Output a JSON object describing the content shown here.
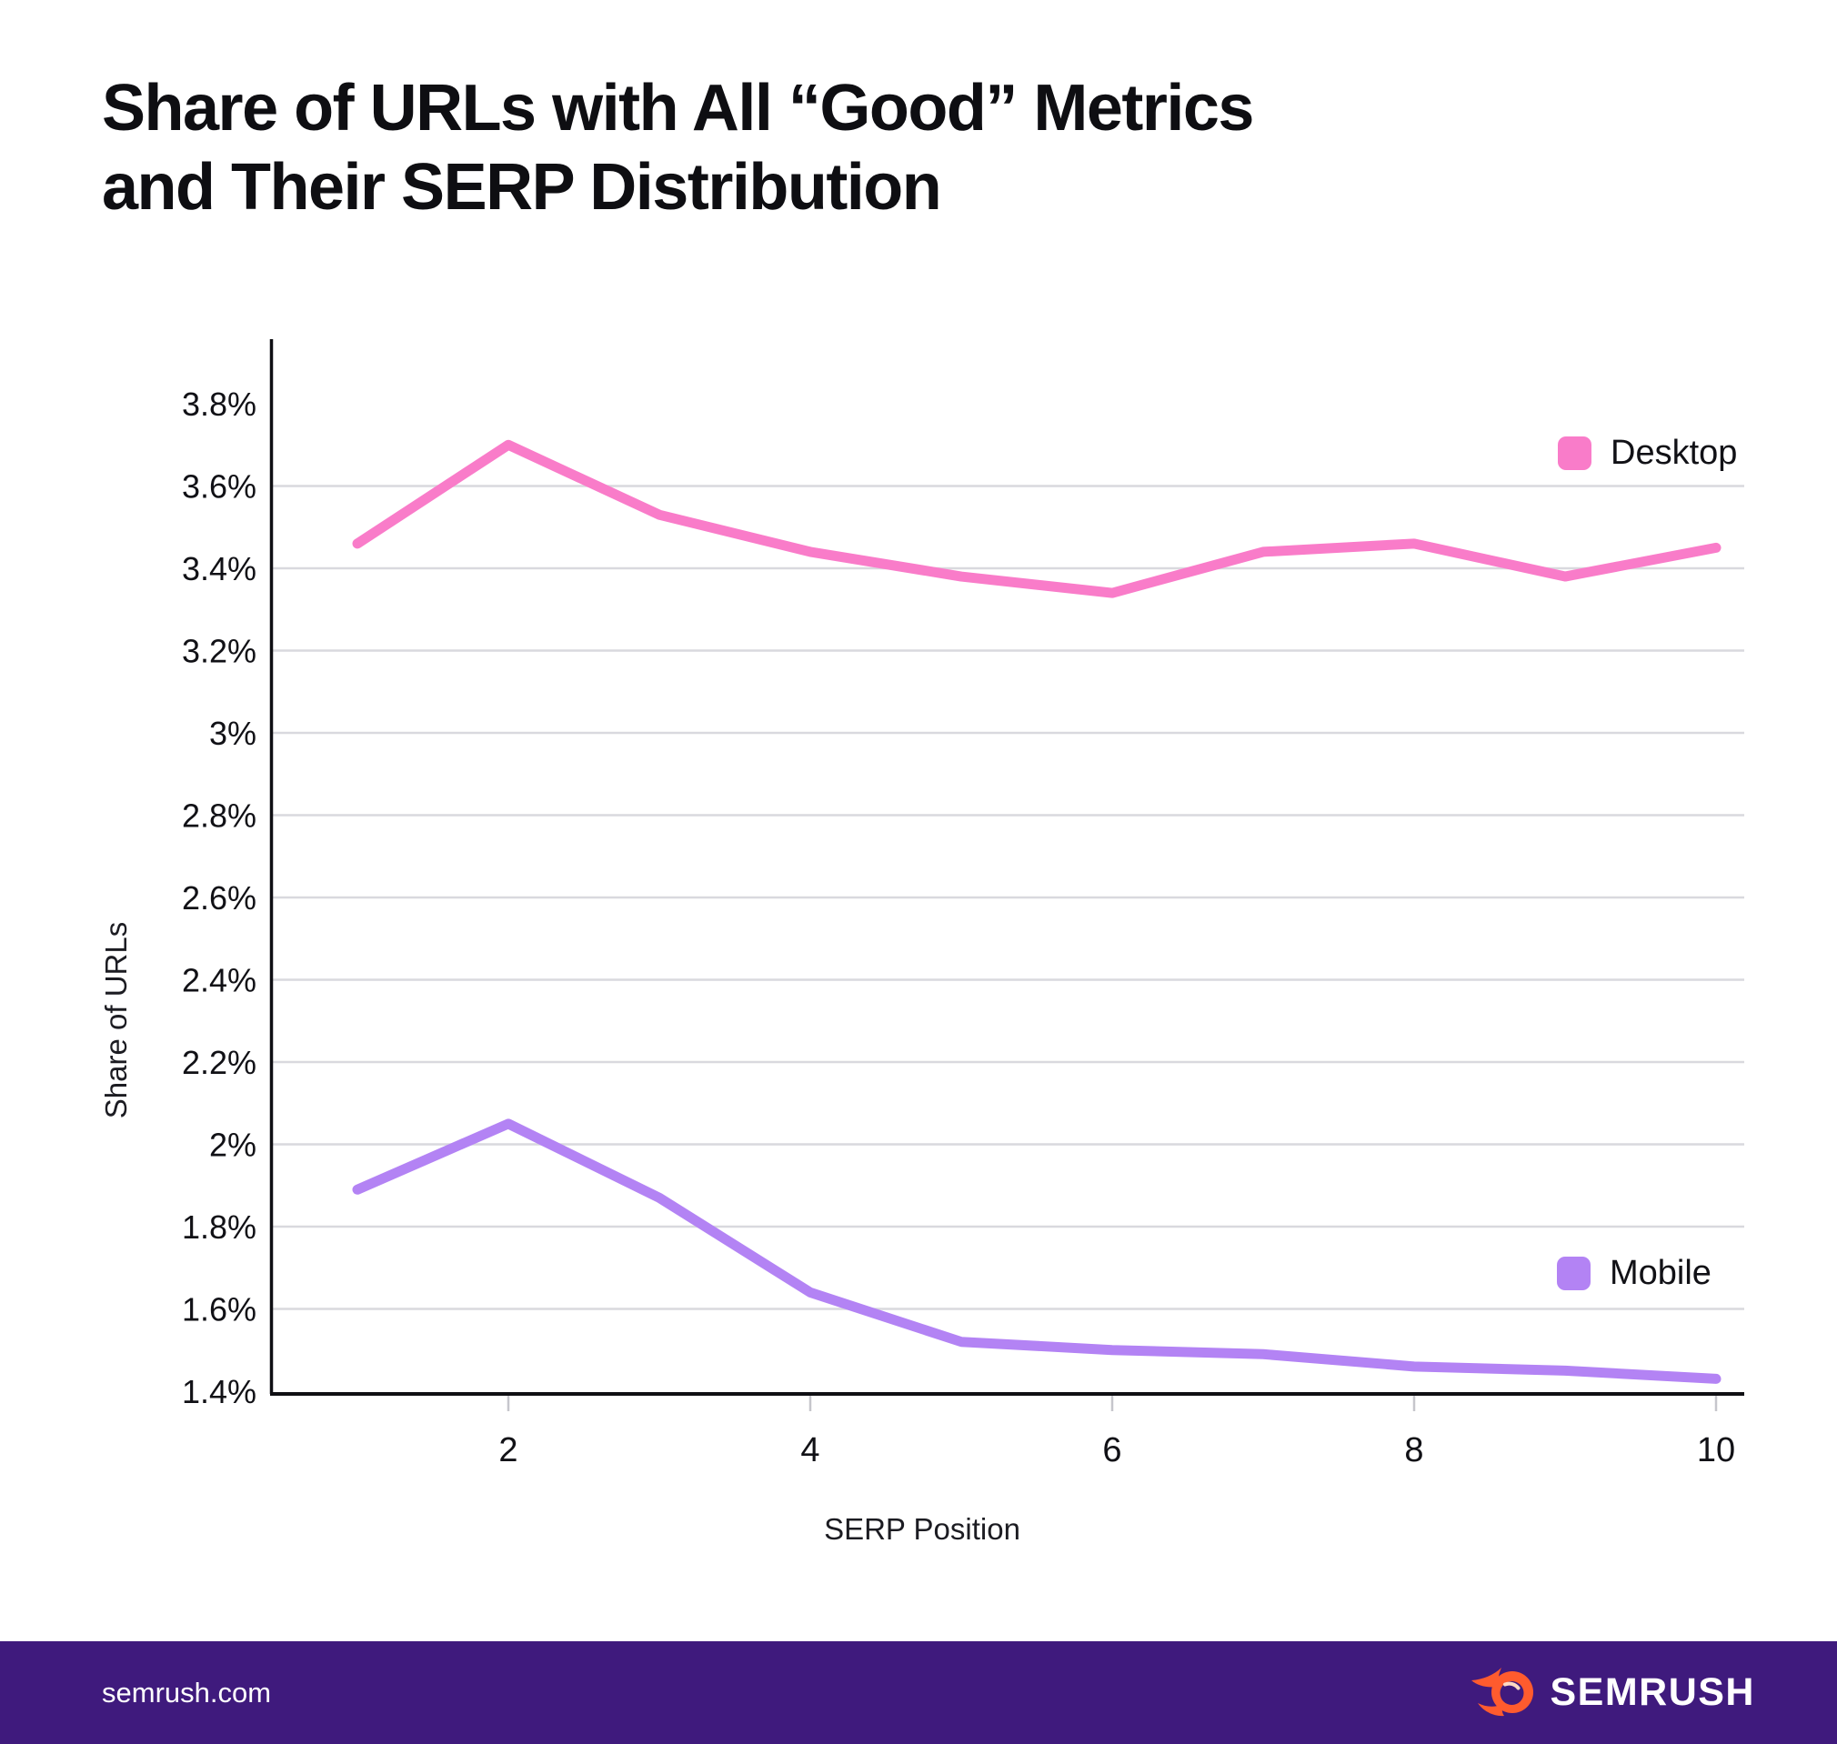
{
  "title": {
    "line1": "Share of URLs with All “Good” Metrics",
    "line2": "and Their SERP Distribution"
  },
  "chart_data": {
    "type": "line",
    "x": [
      1,
      2,
      3,
      4,
      5,
      6,
      7,
      8,
      9,
      10
    ],
    "series": [
      {
        "name": "Desktop",
        "color": "#F97CC9",
        "values": [
          3.46,
          3.7,
          3.53,
          3.44,
          3.38,
          3.34,
          3.44,
          3.46,
          3.38,
          3.45
        ]
      },
      {
        "name": "Mobile",
        "color": "#B383F4",
        "values": [
          1.89,
          2.05,
          1.87,
          1.64,
          1.52,
          1.5,
          1.49,
          1.46,
          1.45,
          1.43
        ]
      }
    ],
    "xlabel": "SERP Position",
    "ylabel": "Share of URLs",
    "ylim": [
      1.4,
      3.95
    ],
    "xticks": [
      2,
      4,
      6,
      8,
      10
    ],
    "yticks": [
      {
        "v": 3.8,
        "label": "3.8%"
      },
      {
        "v": 3.6,
        "label": "3.6%"
      },
      {
        "v": 3.4,
        "label": "3.4%"
      },
      {
        "v": 3.2,
        "label": "3.2%"
      },
      {
        "v": 3.0,
        "label": "3%"
      },
      {
        "v": 2.8,
        "label": "2.8%"
      },
      {
        "v": 2.6,
        "label": "2.6%"
      },
      {
        "v": 2.4,
        "label": "2.4%"
      },
      {
        "v": 2.2,
        "label": "2.2%"
      },
      {
        "v": 2.0,
        "label": "2%"
      },
      {
        "v": 1.8,
        "label": "1.8%"
      },
      {
        "v": 1.6,
        "label": "1.6%"
      },
      {
        "v": 1.4,
        "label": "1.4%"
      }
    ],
    "grid": true,
    "legend_position": "right-of-each-line"
  },
  "colors": {
    "grid": "#D9D9DE",
    "axis": "#0f0f13",
    "tick": "#C6C6CC",
    "footer_bg": "#3F1A7D",
    "brand_orange": "#FF5B2E",
    "brand_highlight": "#FFD9C4"
  },
  "footer": {
    "site": "semrush.com",
    "brand": "SEMRUSH"
  }
}
